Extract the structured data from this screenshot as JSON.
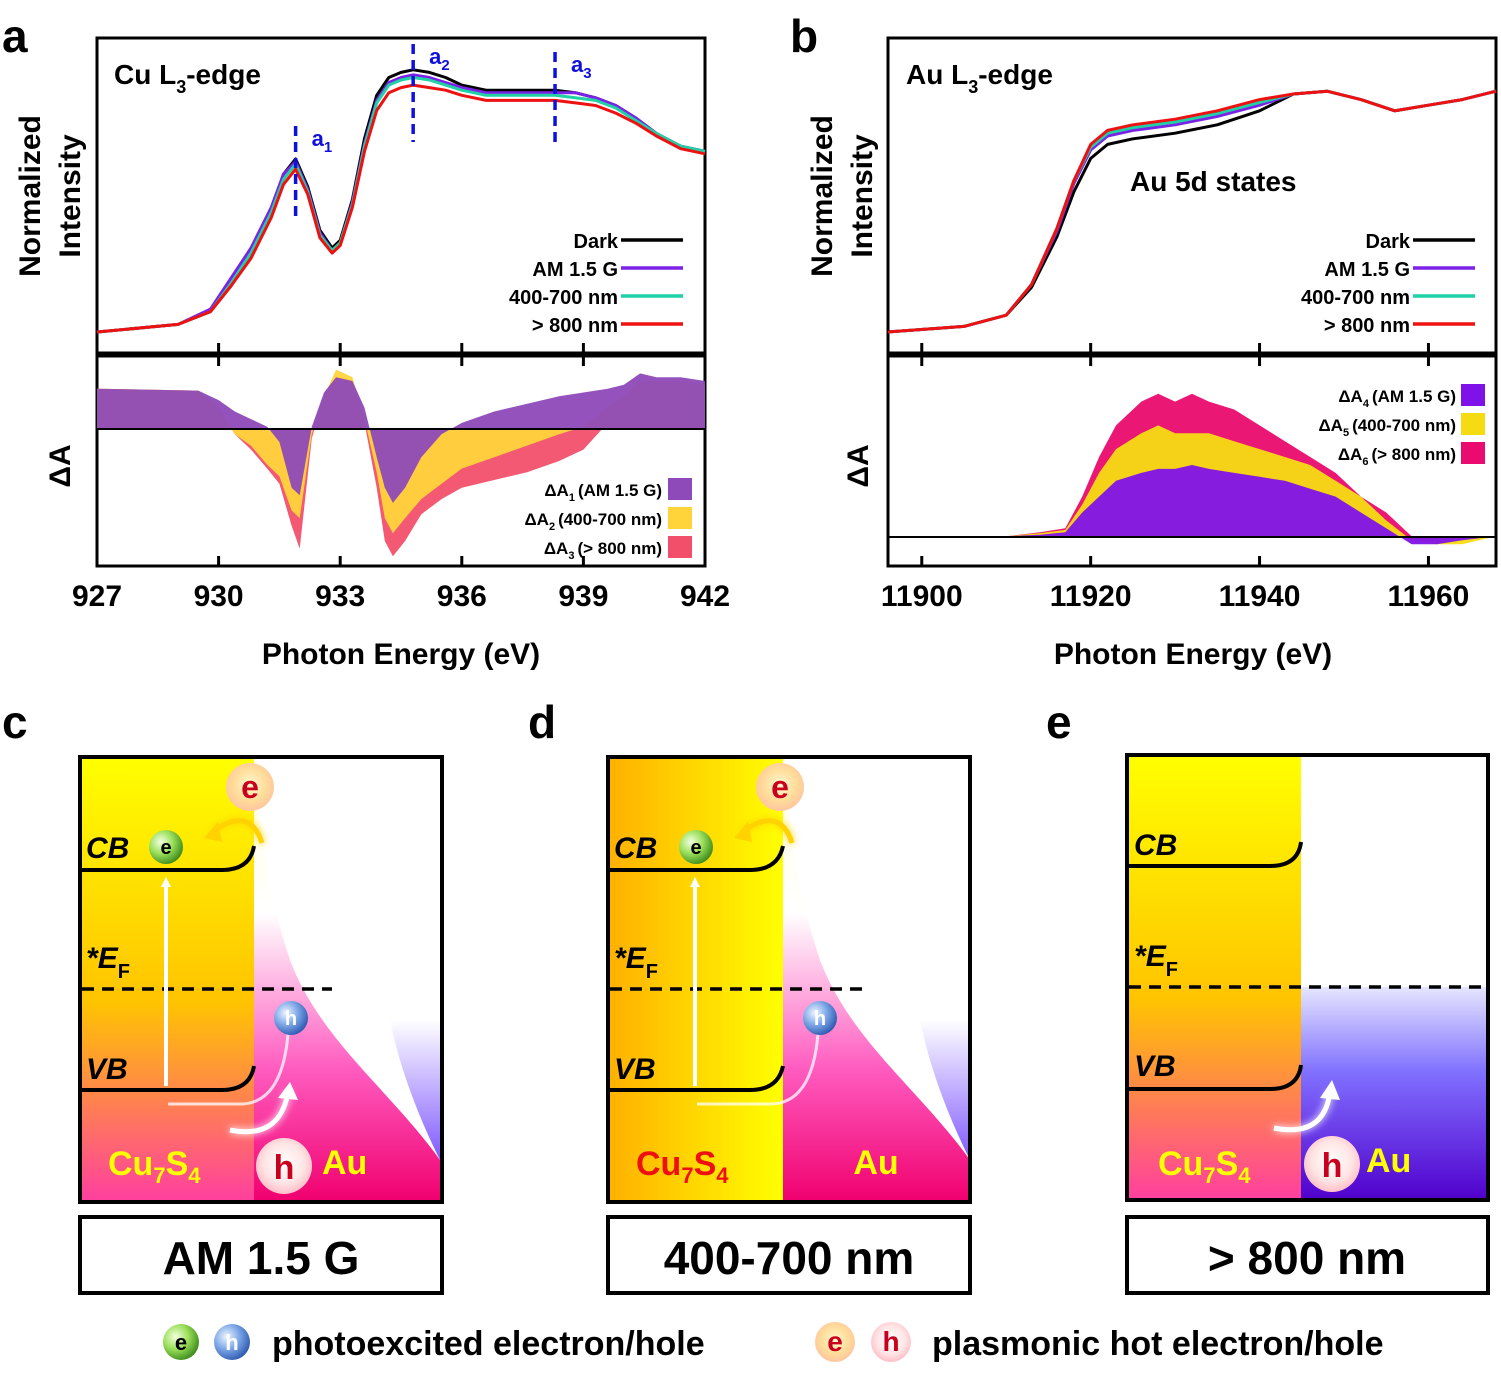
{
  "panel_labels": {
    "a": "a",
    "b": "b",
    "c": "c",
    "d": "d",
    "e": "e"
  },
  "colors": {
    "dark": "#000000",
    "am": "#7b22e6",
    "vis": "#1fd1a4",
    "nir": "#ee1111",
    "dA1": "#8e4ab8",
    "dA2": "#ffd43a",
    "dA3": "#f2506a",
    "dA4": "#7f12e8",
    "dA5": "#f5dc12",
    "dA6": "#ea0b6e",
    "marker": "#1010dd",
    "yellow": "#ffff00",
    "pink": "#ff1a9d",
    "purple": "#5a10d8"
  },
  "chart_data": [
    {
      "panel": "a",
      "type": "line",
      "title": "Cu L3-edge",
      "title_parts": {
        "pre": "Cu L",
        "sub": "3",
        "post": "-edge"
      },
      "xlabel": "Photon Energy (eV)",
      "ylabel": [
        "Normalized",
        "Intensity"
      ],
      "xlim": [
        927,
        942
      ],
      "ylim": [
        0,
        1.1
      ],
      "xticks": [
        927,
        930,
        933,
        936,
        939,
        942
      ],
      "markers": [
        {
          "x": 931.9,
          "label": "a",
          "sub": "1"
        },
        {
          "x": 934.8,
          "label": "a",
          "sub": "2"
        },
        {
          "x": 938.3,
          "label": "a",
          "sub": "3"
        }
      ],
      "series": [
        {
          "name": "Dark",
          "color": "#000000",
          "x": [
            927,
            929,
            929.8,
            930.3,
            930.8,
            931.3,
            931.6,
            931.9,
            932.2,
            932.5,
            932.8,
            933.0,
            933.3,
            933.6,
            933.9,
            934.2,
            934.5,
            934.8,
            935.2,
            935.6,
            936.0,
            936.6,
            937.2,
            937.8,
            938.3,
            938.8,
            939.3,
            939.8,
            940.3,
            940.8,
            941.4,
            942
          ],
          "y": [
            0.0,
            0.03,
            0.08,
            0.18,
            0.3,
            0.48,
            0.62,
            0.68,
            0.57,
            0.4,
            0.33,
            0.36,
            0.52,
            0.76,
            0.93,
            1.0,
            1.02,
            1.03,
            1.02,
            1.0,
            0.97,
            0.95,
            0.95,
            0.95,
            0.95,
            0.94,
            0.92,
            0.89,
            0.84,
            0.78,
            0.73,
            0.71
          ]
        },
        {
          "name": "AM 1.5 G",
          "color": "#7b22e6",
          "x": [
            927,
            929,
            929.8,
            930.3,
            930.8,
            931.3,
            931.6,
            931.9,
            932.2,
            932.5,
            932.8,
            933.0,
            933.3,
            933.6,
            933.9,
            934.2,
            934.5,
            934.8,
            935.2,
            935.6,
            936.0,
            936.6,
            937.2,
            937.8,
            938.3,
            938.8,
            939.3,
            939.8,
            940.3,
            940.8,
            941.4,
            942
          ],
          "y": [
            0.0,
            0.03,
            0.09,
            0.21,
            0.33,
            0.49,
            0.62,
            0.67,
            0.56,
            0.39,
            0.32,
            0.35,
            0.51,
            0.74,
            0.91,
            0.98,
            1.0,
            1.01,
            1.0,
            0.98,
            0.96,
            0.94,
            0.94,
            0.94,
            0.94,
            0.94,
            0.92,
            0.89,
            0.84,
            0.78,
            0.73,
            0.71
          ]
        },
        {
          "name": "400-700 nm",
          "color": "#1fd1a4",
          "x": [
            927,
            929,
            929.8,
            930.3,
            930.8,
            931.3,
            931.6,
            931.9,
            932.2,
            932.5,
            932.8,
            933.0,
            933.3,
            933.6,
            933.9,
            934.2,
            934.5,
            934.8,
            935.2,
            935.6,
            936.0,
            936.6,
            937.2,
            937.8,
            938.3,
            938.8,
            939.3,
            939.8,
            940.3,
            940.8,
            941.4,
            942
          ],
          "y": [
            0.0,
            0.03,
            0.08,
            0.19,
            0.31,
            0.47,
            0.6,
            0.66,
            0.55,
            0.38,
            0.32,
            0.35,
            0.5,
            0.73,
            0.9,
            0.97,
            0.99,
            1.0,
            0.99,
            0.97,
            0.95,
            0.93,
            0.93,
            0.93,
            0.93,
            0.92,
            0.91,
            0.88,
            0.83,
            0.78,
            0.73,
            0.71
          ]
        },
        {
          "name": "> 800 nm",
          "color": "#ee1111",
          "x": [
            927,
            929,
            929.8,
            930.3,
            930.8,
            931.3,
            931.6,
            931.9,
            932.2,
            932.5,
            932.8,
            933.0,
            933.3,
            933.6,
            933.9,
            934.2,
            934.5,
            934.8,
            935.2,
            935.6,
            936.0,
            936.6,
            937.2,
            937.8,
            938.3,
            938.8,
            939.3,
            939.8,
            940.3,
            940.8,
            941.4,
            942
          ],
          "y": [
            0.0,
            0.03,
            0.08,
            0.18,
            0.29,
            0.45,
            0.58,
            0.64,
            0.54,
            0.37,
            0.31,
            0.34,
            0.49,
            0.71,
            0.87,
            0.94,
            0.96,
            0.97,
            0.96,
            0.95,
            0.93,
            0.91,
            0.91,
            0.91,
            0.91,
            0.9,
            0.89,
            0.86,
            0.82,
            0.77,
            0.72,
            0.7
          ]
        }
      ]
    },
    {
      "panel": "a-diff",
      "type": "area",
      "ylabel": "ΔA",
      "xlim": [
        927,
        942
      ],
      "ylim": [
        -0.45,
        0.07
      ],
      "legend": [
        {
          "name": "ΔA",
          "sub": "1",
          "cond": "(AM 1.5 G)"
        },
        {
          "name": "ΔA",
          "sub": "2",
          "cond": "(400-700 nm)"
        },
        {
          "name": "ΔA",
          "sub": "3",
          "cond": "(> 800 nm)"
        }
      ],
      "series": [
        {
          "name": "ΔA1 (AM 1.5 G)",
          "color": "#8e4ab8",
          "x": [
            927,
            929.5,
            930.0,
            930.4,
            930.8,
            931.2,
            931.5,
            931.8,
            932.0,
            932.3,
            932.6,
            932.9,
            933.3,
            933.6,
            933.9,
            934.1,
            934.3,
            934.6,
            935.0,
            935.5,
            936.0,
            936.8,
            937.6,
            938.4,
            939.0,
            939.6,
            940.0,
            940.4,
            940.8,
            941.4,
            942
          ],
          "y": [
            0,
            -0.005,
            -0.03,
            -0.06,
            -0.08,
            -0.1,
            -0.14,
            -0.26,
            -0.28,
            -0.1,
            -0.01,
            0.03,
            0.02,
            -0.05,
            -0.18,
            -0.26,
            -0.3,
            -0.26,
            -0.18,
            -0.12,
            -0.09,
            -0.06,
            -0.04,
            -0.02,
            -0.01,
            0.0,
            0.01,
            0.04,
            0.03,
            0.03,
            0.02
          ]
        },
        {
          "name": "ΔA2 (400-700 nm)",
          "color": "#ffd43a",
          "x": [
            927,
            929.5,
            930.0,
            930.4,
            930.8,
            931.2,
            931.5,
            931.8,
            932.0,
            932.3,
            932.6,
            932.9,
            933.3,
            933.6,
            933.9,
            934.1,
            934.3,
            934.6,
            935.0,
            935.5,
            936.0,
            936.8,
            937.6,
            938.4,
            939.0,
            939.6,
            940.0,
            940.4,
            940.8,
            941.4,
            942
          ],
          "y": [
            0,
            -0.005,
            -0.05,
            -0.12,
            -0.15,
            -0.2,
            -0.23,
            -0.32,
            -0.34,
            -0.12,
            -0.02,
            0.05,
            0.03,
            -0.08,
            -0.22,
            -0.34,
            -0.38,
            -0.34,
            -0.29,
            -0.25,
            -0.21,
            -0.18,
            -0.15,
            -0.12,
            -0.1,
            -0.05,
            -0.02,
            0.02,
            0.02,
            0.02,
            0.01
          ]
        },
        {
          "name": "ΔA3 (> 800 nm)",
          "color": "#f2506a",
          "x": [
            927,
            929.5,
            930.0,
            930.4,
            930.8,
            931.2,
            931.5,
            931.8,
            932.0,
            932.3,
            932.6,
            932.9,
            933.3,
            933.6,
            933.9,
            934.1,
            934.3,
            934.6,
            935.0,
            935.5,
            936.0,
            936.8,
            937.6,
            938.4,
            939.0,
            939.6,
            940.0,
            940.4,
            940.8,
            941.4,
            942
          ],
          "y": [
            0,
            -0.005,
            -0.05,
            -0.12,
            -0.16,
            -0.21,
            -0.25,
            -0.36,
            -0.42,
            -0.13,
            -0.02,
            0.02,
            0.02,
            -0.09,
            -0.26,
            -0.4,
            -0.44,
            -0.4,
            -0.33,
            -0.29,
            -0.26,
            -0.24,
            -0.22,
            -0.19,
            -0.16,
            -0.09,
            -0.04,
            0.0,
            0.01,
            0.01,
            0.0
          ]
        }
      ]
    },
    {
      "panel": "b",
      "type": "line",
      "title": "Au L3-edge",
      "title_parts": {
        "pre": "Au L",
        "sub": "3",
        "post": "-edge"
      },
      "xlabel": "Photon Energy (eV)",
      "ylabel": [
        "Normalized",
        "Intensity"
      ],
      "xlim": [
        11896,
        11968
      ],
      "ylim": [
        0,
        1.0
      ],
      "xticks": [
        11900,
        11920,
        11940,
        11960
      ],
      "annotation": "Au 5d states",
      "series": [
        {
          "name": "Dark",
          "color": "#000000",
          "x": [
            11896,
            11905,
            11910,
            11913,
            11916,
            11918,
            11920,
            11922,
            11925,
            11930,
            11935,
            11940,
            11944,
            11948,
            11952,
            11956,
            11960,
            11964,
            11968
          ],
          "y": [
            0.0,
            0.02,
            0.06,
            0.16,
            0.34,
            0.5,
            0.62,
            0.67,
            0.69,
            0.71,
            0.74,
            0.79,
            0.85,
            0.86,
            0.83,
            0.79,
            0.81,
            0.83,
            0.86
          ]
        },
        {
          "name": "AM 1.5 G",
          "color": "#7b22e6",
          "x": [
            11896,
            11905,
            11910,
            11913,
            11916,
            11918,
            11920,
            11922,
            11925,
            11930,
            11935,
            11940,
            11944,
            11948,
            11952,
            11956,
            11960,
            11964,
            11968
          ],
          "y": [
            0.0,
            0.02,
            0.06,
            0.17,
            0.36,
            0.53,
            0.65,
            0.7,
            0.72,
            0.74,
            0.77,
            0.81,
            0.85,
            0.86,
            0.83,
            0.79,
            0.81,
            0.83,
            0.86
          ]
        },
        {
          "name": "400-700 nm",
          "color": "#1fd1a4",
          "x": [
            11896,
            11905,
            11910,
            11913,
            11916,
            11918,
            11920,
            11922,
            11925,
            11930,
            11935,
            11940,
            11944,
            11948,
            11952,
            11956,
            11960,
            11964,
            11968
          ],
          "y": [
            0.0,
            0.02,
            0.06,
            0.17,
            0.37,
            0.54,
            0.66,
            0.71,
            0.73,
            0.75,
            0.78,
            0.82,
            0.85,
            0.86,
            0.83,
            0.79,
            0.81,
            0.83,
            0.86
          ]
        },
        {
          "name": "> 800 nm",
          "color": "#ee1111",
          "x": [
            11896,
            11905,
            11910,
            11913,
            11916,
            11918,
            11920,
            11922,
            11925,
            11930,
            11935,
            11940,
            11944,
            11948,
            11952,
            11956,
            11960,
            11964,
            11968
          ],
          "y": [
            0.0,
            0.02,
            0.06,
            0.17,
            0.37,
            0.54,
            0.67,
            0.72,
            0.74,
            0.76,
            0.79,
            0.83,
            0.85,
            0.86,
            0.83,
            0.79,
            0.81,
            0.83,
            0.86
          ]
        }
      ]
    },
    {
      "panel": "b-diff",
      "type": "area",
      "ylabel": "ΔA",
      "xlim": [
        11896,
        11968
      ],
      "ylim": [
        -0.03,
        0.22
      ],
      "legend": [
        {
          "name": "ΔA",
          "sub": "4",
          "cond": "(AM 1.5 G)"
        },
        {
          "name": "ΔA",
          "sub": "5",
          "cond": "(400-700 nm)"
        },
        {
          "name": "ΔA",
          "sub": "6",
          "cond": "(> 800 nm)"
        }
      ],
      "series": [
        {
          "name": "ΔA6 (> 800 nm)",
          "color": "#ea0b6e",
          "x": [
            11896,
            11910,
            11914,
            11917,
            11919,
            11921,
            11923,
            11926,
            11928,
            11930,
            11932,
            11934,
            11937,
            11940,
            11943,
            11946,
            11949,
            11952,
            11955,
            11958,
            11961,
            11964,
            11968
          ],
          "y": [
            0,
            0,
            0.005,
            0.01,
            0.05,
            0.1,
            0.14,
            0.17,
            0.18,
            0.17,
            0.18,
            0.17,
            0.16,
            0.14,
            0.12,
            0.1,
            0.08,
            0.05,
            0.03,
            0.0,
            -0.01,
            -0.005,
            0
          ]
        },
        {
          "name": "ΔA5 (400-700 nm)",
          "color": "#f5dc12",
          "x": [
            11896,
            11910,
            11914,
            11917,
            11919,
            11921,
            11923,
            11926,
            11928,
            11930,
            11932,
            11934,
            11937,
            11940,
            11943,
            11946,
            11949,
            11952,
            11955,
            11958,
            11961,
            11964,
            11968
          ],
          "y": [
            0,
            0,
            0.004,
            0.008,
            0.04,
            0.08,
            0.11,
            0.13,
            0.14,
            0.13,
            0.13,
            0.13,
            0.12,
            0.11,
            0.1,
            0.09,
            0.07,
            0.05,
            0.02,
            -0.005,
            -0.01,
            -0.01,
            0
          ]
        },
        {
          "name": "ΔA4 (AM 1.5 G)",
          "color": "#7f12e8",
          "x": [
            11896,
            11910,
            11914,
            11917,
            11919,
            11921,
            11923,
            11926,
            11928,
            11930,
            11932,
            11934,
            11937,
            11940,
            11943,
            11946,
            11949,
            11952,
            11955,
            11958,
            11961,
            11964,
            11968
          ],
          "y": [
            0,
            0,
            0.002,
            0.005,
            0.03,
            0.05,
            0.07,
            0.08,
            0.085,
            0.085,
            0.09,
            0.085,
            0.08,
            0.075,
            0.07,
            0.06,
            0.05,
            0.03,
            0.01,
            -0.01,
            -0.01,
            -0.005,
            0
          ]
        }
      ]
    }
  ],
  "diagrams": {
    "c": {
      "condition": "AM 1.5 G",
      "cb": "CB",
      "vb": "VB",
      "ef": "E",
      "ef_sub": "F",
      "ef_prefix": "*",
      "semi": "Cu",
      "semi_sub1": "7",
      "semi_mid": "S",
      "semi_sub2": "4",
      "metal": "Au",
      "e": "e",
      "h": "h"
    },
    "d": {
      "condition": "400-700 nm",
      "cb": "CB",
      "vb": "VB",
      "ef": "E",
      "ef_sub": "F",
      "ef_prefix": "*",
      "semi": "Cu",
      "semi_sub1": "7",
      "semi_mid": "S",
      "semi_sub2": "4",
      "metal": "Au",
      "e": "e",
      "h": "h"
    },
    "e": {
      "condition": "> 800 nm",
      "cb": "CB",
      "vb": "VB",
      "ef": "E",
      "ef_sub": "F",
      "ef_prefix": "*",
      "semi": "Cu",
      "semi_sub1": "7",
      "semi_mid": "S",
      "semi_sub2": "4",
      "metal": "Au",
      "e": "e",
      "h": "h"
    }
  },
  "footer_legend": {
    "photo_label": "photoexcited electron/hole",
    "plasmonic_label": "plasmonic hot electron/hole",
    "e": "e",
    "h": "h"
  }
}
